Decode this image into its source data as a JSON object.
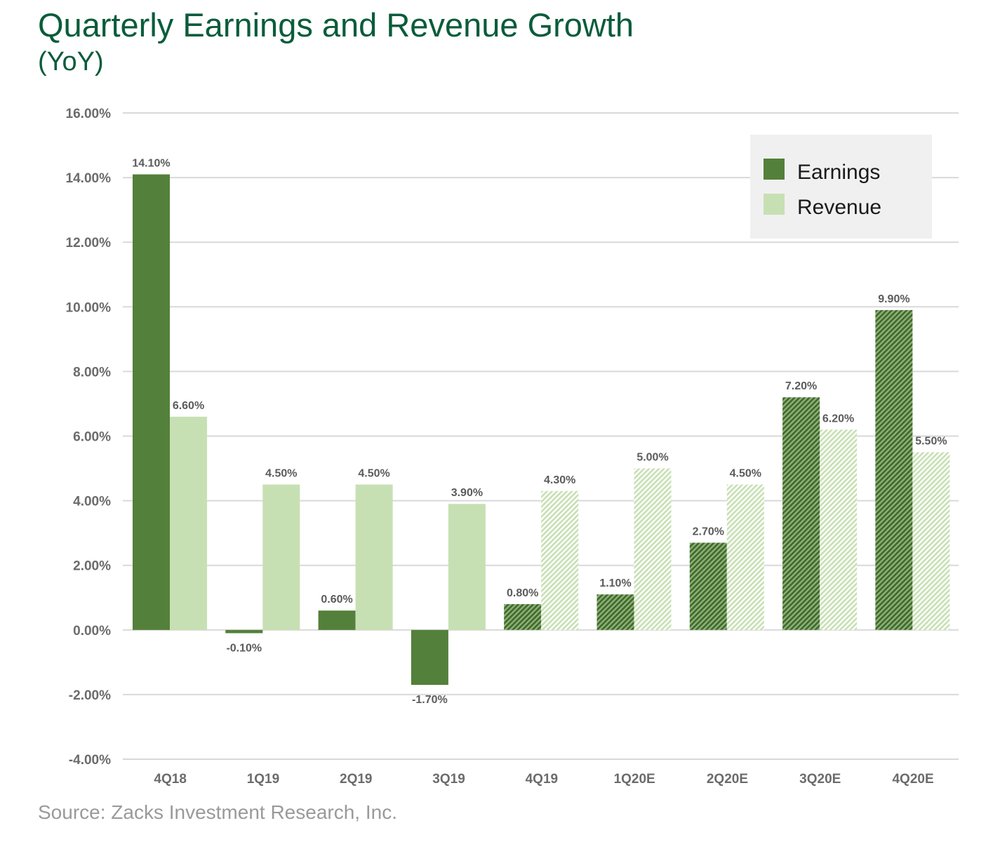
{
  "title": "Quarterly Earnings and Revenue Growth",
  "subtitle": "(YoY)",
  "source": "Source:  Zacks Investment Research, Inc.",
  "colors": {
    "earnings": "#53803a",
    "revenue": "#c7e0b3",
    "grid": "#d9d9d9",
    "legend_bg": "#f0f0f0",
    "title": "#0a5c3a"
  },
  "chart_data": {
    "type": "bar",
    "categories": [
      "4Q18",
      "1Q19",
      "2Q19",
      "3Q19",
      "4Q19",
      "1Q20E",
      "2Q20E",
      "3Q20E",
      "4Q20E"
    ],
    "estimate_from_index": 4,
    "series": [
      {
        "name": "Earnings",
        "values": [
          14.1,
          -0.1,
          0.6,
          -1.7,
          0.8,
          1.1,
          2.7,
          7.2,
          9.9
        ],
        "labels": [
          "14.10%",
          "-0.10%",
          "0.60%",
          "-1.70%",
          "0.80%",
          "1.10%",
          "2.70%",
          "7.20%",
          "9.90%"
        ]
      },
      {
        "name": "Revenue",
        "values": [
          6.6,
          4.5,
          4.5,
          3.9,
          4.3,
          5.0,
          4.5,
          6.2,
          5.5
        ],
        "labels": [
          "6.60%",
          "4.50%",
          "4.50%",
          "3.90%",
          "4.30%",
          "5.00%",
          "4.50%",
          "6.20%",
          "5.50%"
        ]
      }
    ],
    "y_ticks": [
      -4,
      -2,
      0,
      2,
      4,
      6,
      8,
      10,
      12,
      14,
      16
    ],
    "y_tick_labels": [
      "-4.00%",
      "-2.00%",
      "0.00%",
      "2.00%",
      "4.00%",
      "6.00%",
      "8.00%",
      "10.00%",
      "12.00%",
      "14.00%",
      "16.00%"
    ],
    "ylim": [
      -4,
      16
    ],
    "grid": true,
    "legend": {
      "position": "top-right",
      "entries": [
        "Earnings",
        "Revenue"
      ]
    }
  }
}
